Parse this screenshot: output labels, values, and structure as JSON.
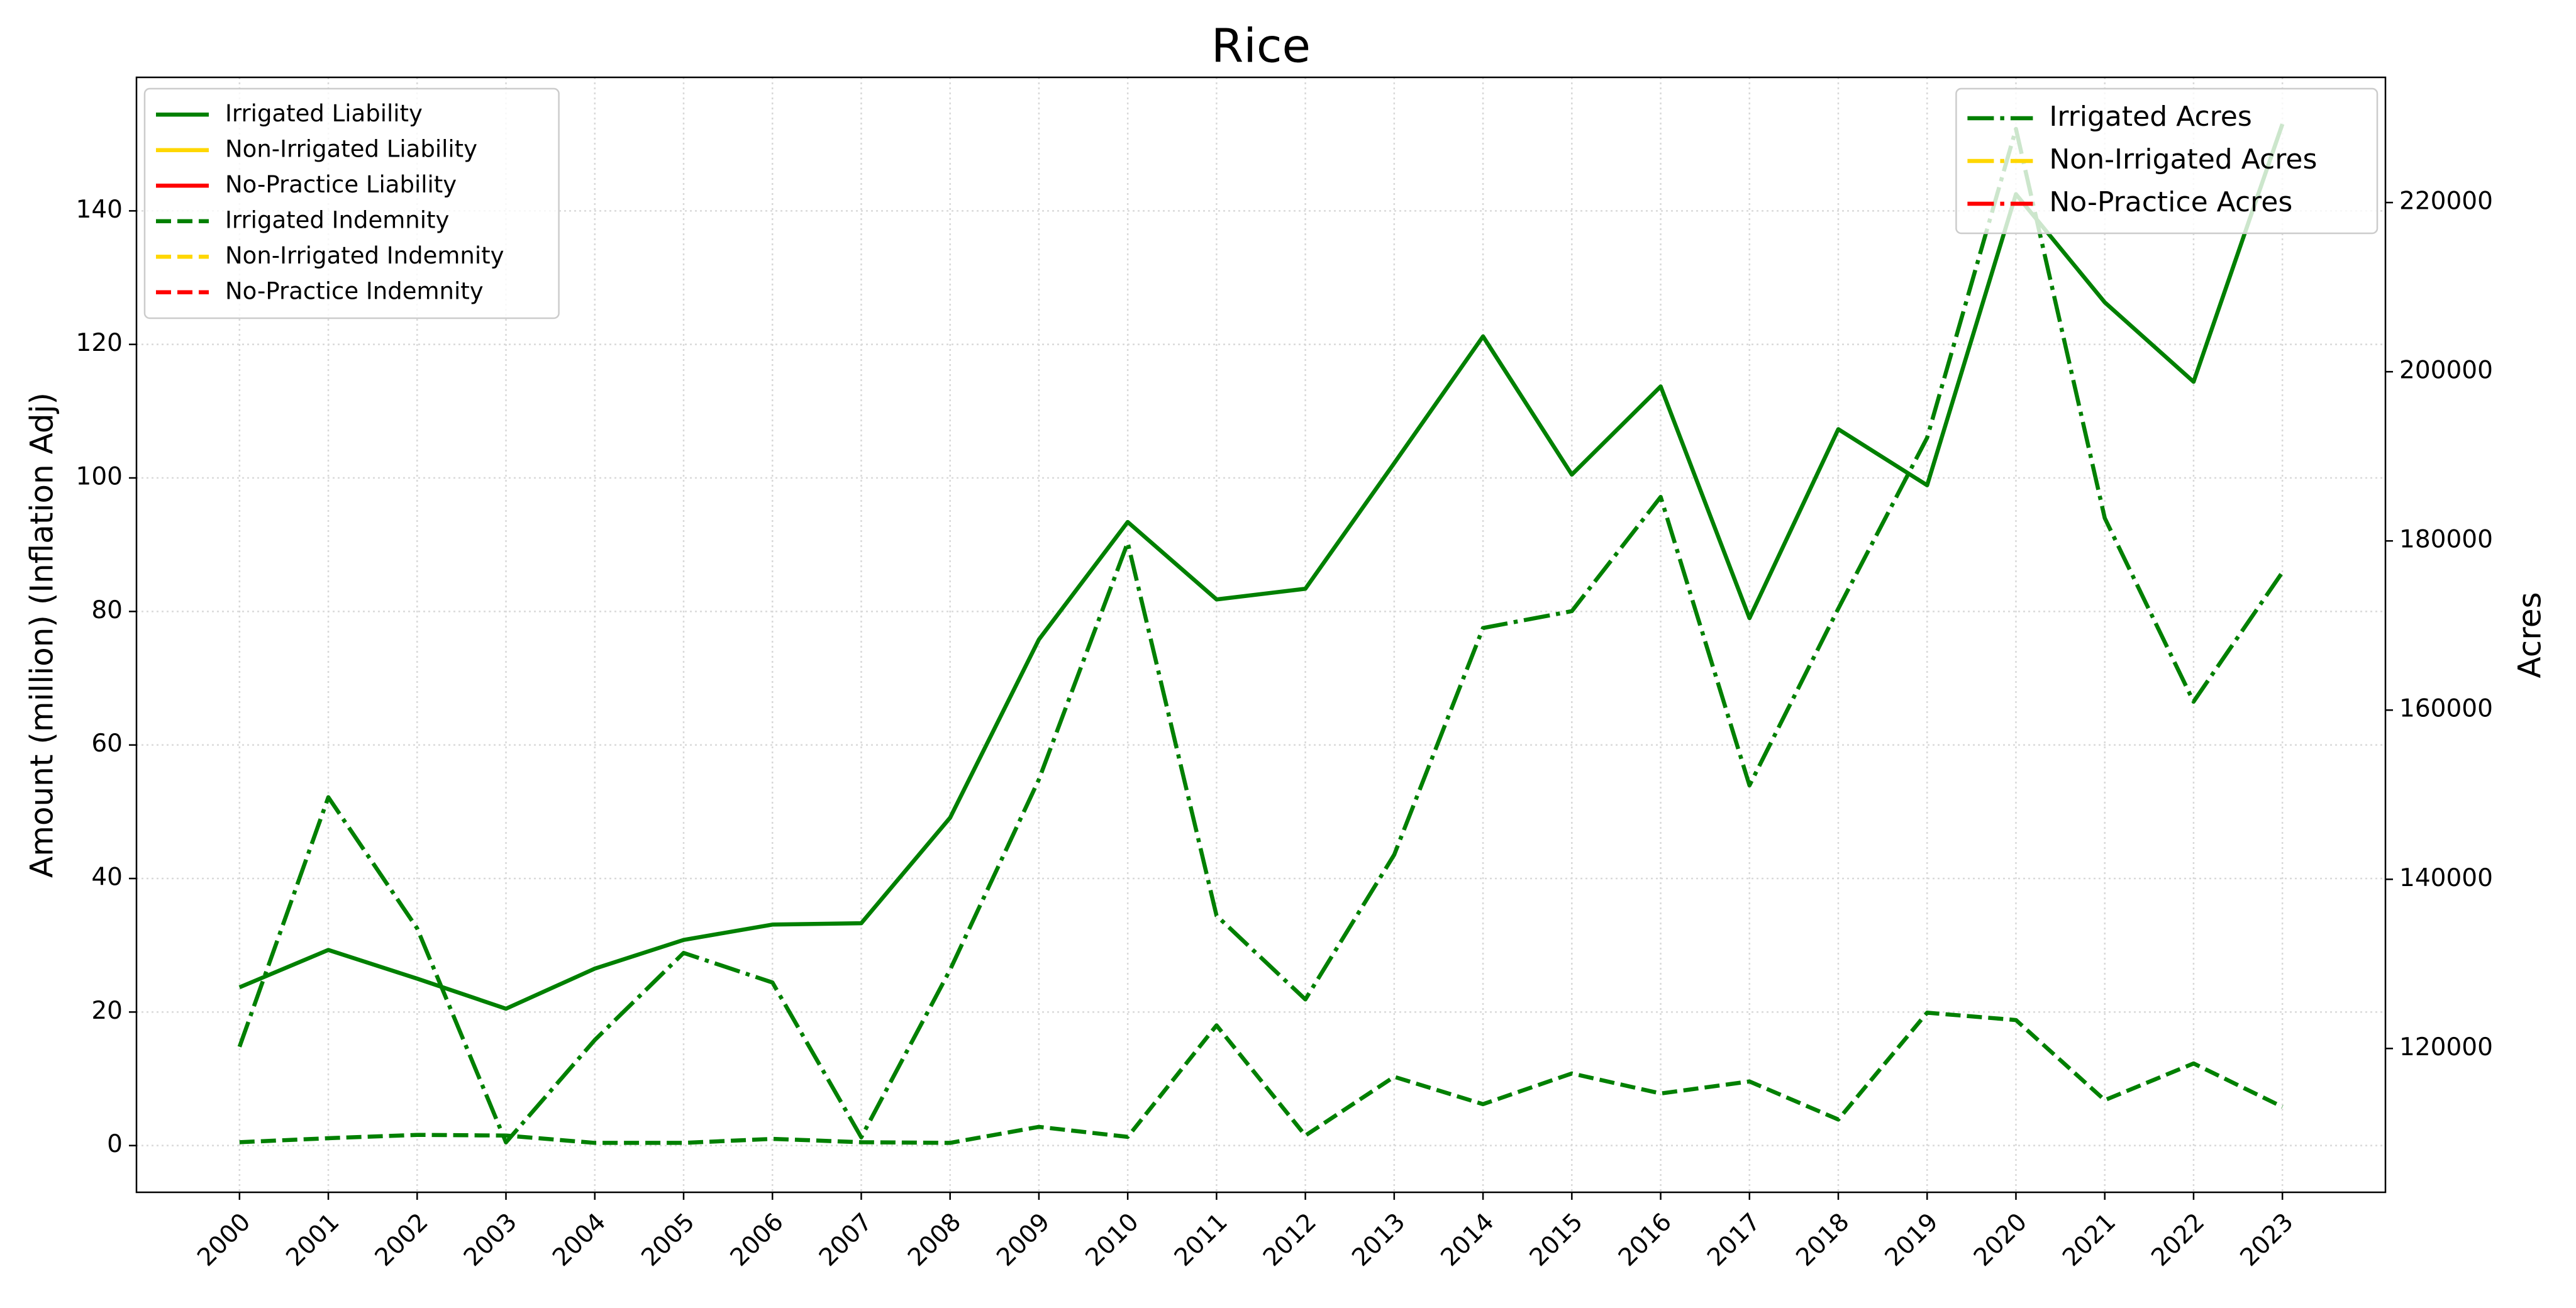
{
  "chart_data": {
    "type": "line",
    "title": "Rice",
    "ylabel": "Amount (million) (Inflation Adj)",
    "y2label": "Acres",
    "x": [
      2000,
      2001,
      2002,
      2003,
      2004,
      2005,
      2006,
      2007,
      2008,
      2009,
      2010,
      2011,
      2012,
      2013,
      2014,
      2015,
      2016,
      2017,
      2018,
      2019,
      2020,
      2021,
      2022,
      2023
    ],
    "xlim": [
      1998.84,
      2024.16
    ],
    "xticks": [
      2000,
      2001,
      2002,
      2003,
      2004,
      2005,
      2006,
      2007,
      2008,
      2009,
      2010,
      2011,
      2012,
      2013,
      2014,
      2015,
      2016,
      2017,
      2018,
      2019,
      2020,
      2021,
      2022,
      2023
    ],
    "ylim": [
      -7,
      160
    ],
    "yticks": [
      0,
      20,
      40,
      60,
      80,
      100,
      120,
      140
    ],
    "y2lim": [
      103000,
      234800
    ],
    "y2ticks": [
      120000,
      140000,
      160000,
      180000,
      200000,
      220000
    ],
    "grid": true,
    "legend": "upper left",
    "legend2": "upper right",
    "series": [
      {
        "name": "Irrigated Liability",
        "color": "#008000",
        "style": "solid",
        "values": [
          23.7,
          29.3,
          25,
          20.5,
          26.5,
          30.8,
          33.1,
          33.3,
          49.1,
          75.8,
          93.4,
          81.8,
          83.4,
          102.2,
          121.2,
          100.5,
          113.7,
          79,
          107.3,
          98.9,
          142.5,
          126.3,
          114.4,
          153
        ]
      },
      {
        "name": "Non-Irrigated Liability",
        "color": "#ffd700",
        "style": "solid"
      },
      {
        "name": "No-Practice Liability",
        "color": "#ff0000",
        "style": "solid"
      },
      {
        "name": "Irrigated Indemnity",
        "color": "#008000",
        "style": "dashed",
        "values": [
          0.5,
          1.1,
          1.6,
          1.5,
          0.4,
          0.4,
          1,
          0.5,
          0.4,
          2.8,
          1.3,
          18,
          1.5,
          10.3,
          6.2,
          10.8,
          7.8,
          9.6,
          3.9,
          19.9,
          18.8,
          6.8,
          12.3,
          5.8
        ]
      },
      {
        "name": "Non-Irrigated Indemnity",
        "color": "#ffd700",
        "style": "dashed"
      },
      {
        "name": "No-Practice Indemnity",
        "color": "#ff0000",
        "style": "dashed"
      },
      {
        "name": "Irrigated Acres",
        "color": "#008000",
        "style": "dashdot",
        "axis": "y2",
        "values": [
          120200,
          149700,
          134200,
          108900,
          121000,
          131300,
          127800,
          109500,
          129300,
          151800,
          179800,
          135700,
          125800,
          142900,
          169700,
          171700,
          185200,
          151100,
          172000,
          192200,
          228700,
          182700,
          161000,
          176300
        ]
      },
      {
        "name": "Non-Irrigated Acres",
        "color": "#ffd700",
        "style": "dashdot",
        "axis": "y2"
      },
      {
        "name": "No-Practice Acres",
        "color": "#ff0000",
        "style": "dashdot",
        "axis": "y2"
      }
    ]
  }
}
